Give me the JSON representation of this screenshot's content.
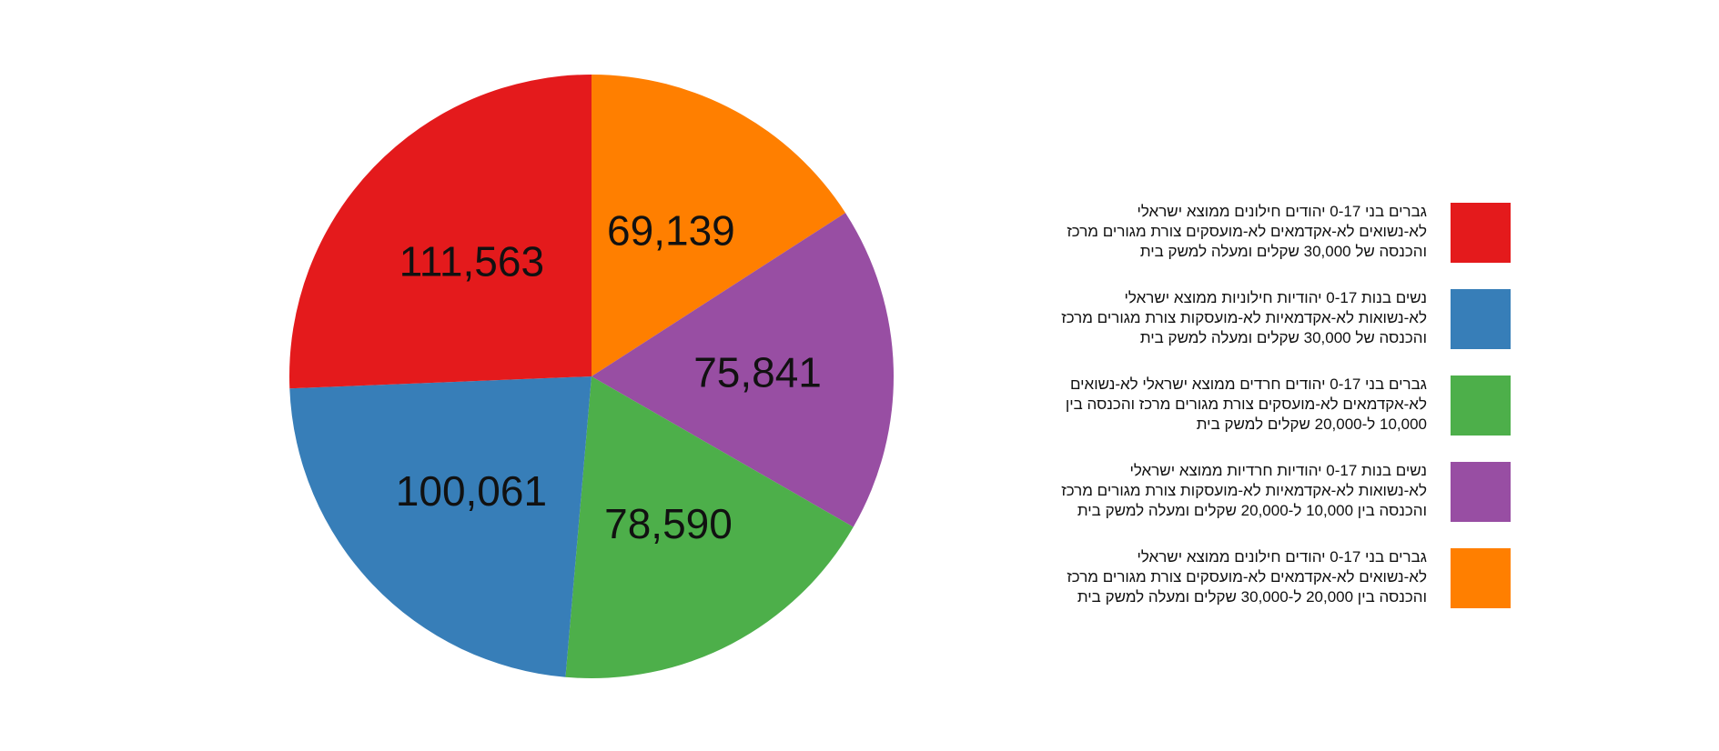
{
  "chart_data": {
    "type": "pie",
    "start_angle_deg": 0,
    "direction": "clockwise",
    "legend_position": "right",
    "slices": [
      {
        "value": 69139,
        "value_label": "69,139",
        "color": "#FF7F00",
        "legend_lines": [
          "גברים בני 0-17 יהודים חילונים ממוצא ישראלי",
          "לא-נשואים לא-אקדמאים לא-מועסקים צורת מגורים מרכז",
          "והכנסה בין 20,000 ל-30,000 שקלים ומעלה למשק בית"
        ]
      },
      {
        "value": 75841,
        "value_label": "75,841",
        "color": "#984EA3",
        "legend_lines": [
          "נשים בנות 0-17 יהודיות חרדיות ממוצא ישראלי",
          "לא-נשואות לא-אקדמאיות לא-מועסקות צורת מגורים מרכז",
          "והכנסה בין 10,000 ל-20,000 שקלים ומעלה למשק בית"
        ]
      },
      {
        "value": 78590,
        "value_label": "78,590",
        "color": "#4DAF4A",
        "legend_lines": [
          "גברים בני 0-17 יהודים חרדים ממוצא ישראלי לא-נשואים",
          "לא-אקדמאים לא-מועסקים צורת מגורים מרכז והכנסה בין",
          "10,000 ל-20,000 שקלים למשק בית"
        ]
      },
      {
        "value": 100061,
        "value_label": "100,061",
        "color": "#377EB8",
        "legend_lines": [
          "נשים בנות 0-17 יהודיות חילוניות ממוצא ישראלי",
          "לא-נשואות לא-אקדמאיות לא-מועסקות צורת מגורים מרכז",
          "והכנסה של 30,000 שקלים ומעלה למשק בית"
        ]
      },
      {
        "value": 111563,
        "value_label": "111,563",
        "color": "#E41A1C",
        "legend_lines": [
          "גברים בני 0-17 יהודים חילונים ממוצא ישראלי",
          "לא-נשואים לא-אקדמאים לא-מועסקים צורת מגורים מרכז",
          "והכנסה של 30,000 שקלים ומעלה למשק בית"
        ]
      }
    ],
    "legend_order": [
      4,
      3,
      2,
      1,
      0
    ]
  }
}
